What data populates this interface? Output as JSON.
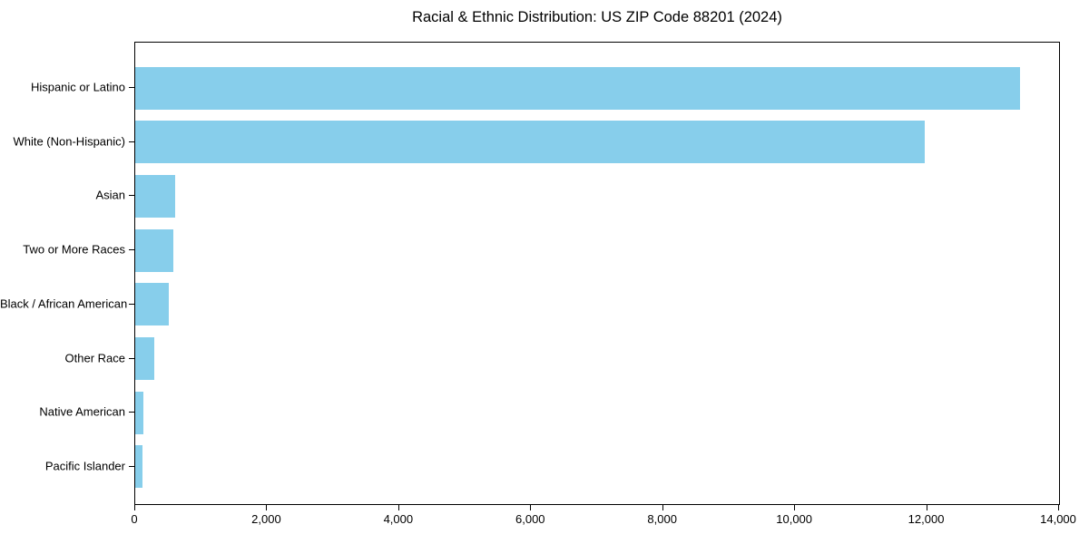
{
  "chart_data": {
    "type": "bar",
    "orientation": "horizontal",
    "title": "Racial & Ethnic Distribution: US ZIP Code 88201 (2024)",
    "categories": [
      "Hispanic or Latino",
      "White (Non-Hispanic)",
      "Asian",
      "Two or More Races",
      "Black / African American",
      "Other Race",
      "Native American",
      "Pacific Islander"
    ],
    "values": [
      13410,
      11970,
      600,
      575,
      510,
      290,
      120,
      110
    ],
    "xlabel": "",
    "ylabel": "",
    "xlim": [
      0,
      14000
    ],
    "xticks": {
      "values": [
        0,
        2000,
        4000,
        6000,
        8000,
        10000,
        12000,
        14000
      ],
      "labels": [
        "0",
        "2,000",
        "4,000",
        "6,000",
        "8,000",
        "10,000",
        "12,000",
        "14,000"
      ]
    },
    "bar_color": "#87CEEB",
    "grid": false,
    "legend": "none"
  }
}
